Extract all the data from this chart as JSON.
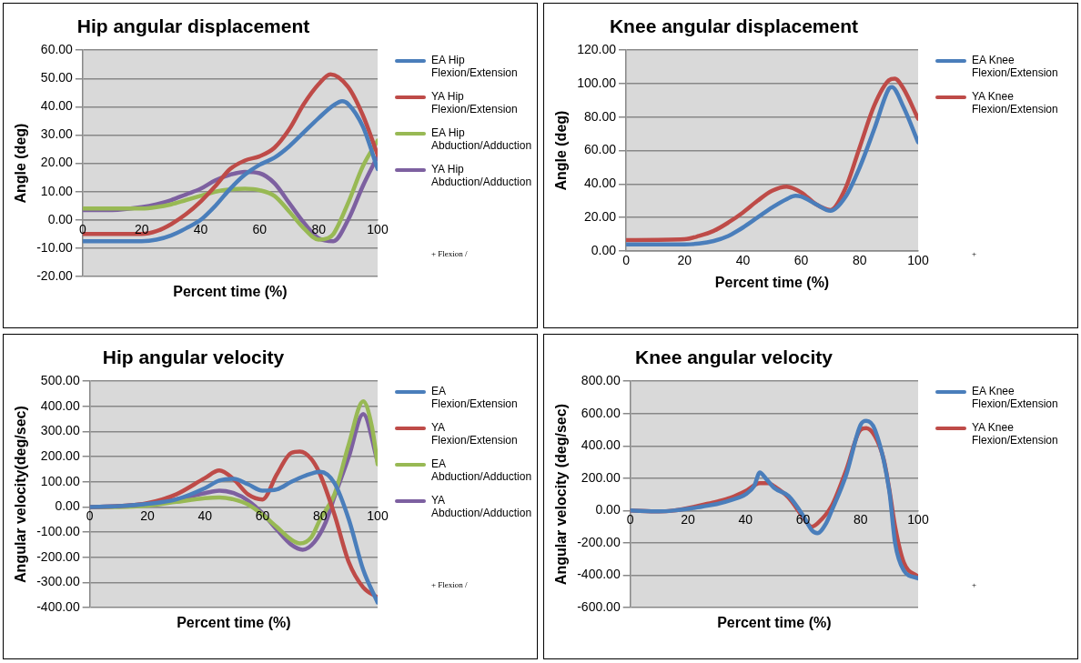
{
  "chart_data": [
    {
      "type": "line",
      "title": "Hip angular displacement",
      "xlabel": "Percent time (%)",
      "ylabel": "Angle (deg)",
      "xlim": [
        0,
        100
      ],
      "xticks": [
        0,
        20,
        40,
        60,
        80,
        100
      ],
      "ylim": [
        -20,
        60
      ],
      "yticks": [
        {
          "value": -20,
          "label": "-20.00"
        },
        {
          "value": -10,
          "label": "-10.00"
        },
        {
          "value": 0,
          "label": "0.00"
        },
        {
          "value": 10,
          "label": "10.00"
        },
        {
          "value": 20,
          "label": "20.00"
        },
        {
          "value": 30,
          "label": "30.00"
        },
        {
          "value": 40,
          "label": "40.00"
        },
        {
          "value": 50,
          "label": "50.00"
        },
        {
          "value": 60,
          "label": "60.00"
        }
      ],
      "grid": "y",
      "legend": "right",
      "annotations": [
        "+ Flexion /"
      ],
      "series": [
        {
          "name": "EA Hip Flexion/Extension",
          "color": "#4a7ebb",
          "x": [
            0,
            10,
            20,
            25,
            30,
            35,
            40,
            45,
            50,
            55,
            60,
            65,
            70,
            75,
            80,
            85,
            88,
            90,
            95,
            100
          ],
          "values": [
            -7.5,
            -7.5,
            -7.5,
            -7,
            -5.5,
            -3,
            0,
            5,
            11,
            16,
            19.5,
            22,
            26,
            31,
            36,
            40.5,
            42,
            41,
            33,
            18
          ]
        },
        {
          "name": "YA Hip Flexion/Extension",
          "color": "#be4b48",
          "x": [
            0,
            10,
            20,
            25,
            30,
            35,
            40,
            45,
            50,
            55,
            60,
            65,
            70,
            75,
            80,
            84,
            90,
            95,
            100
          ],
          "values": [
            -5,
            -5,
            -5,
            -4,
            -1.5,
            2,
            6.5,
            12,
            18,
            21,
            22.5,
            25.5,
            32,
            41,
            48,
            51.5,
            47,
            37,
            23
          ]
        },
        {
          "name": "EA Hip Abduction/Adduction",
          "color": "#98b954",
          "x": [
            0,
            10,
            20,
            25,
            30,
            35,
            40,
            45,
            50,
            55,
            60,
            65,
            70,
            75,
            80,
            83,
            85,
            90,
            95,
            100
          ],
          "values": [
            4,
            4,
            4,
            4.5,
            5.5,
            7,
            8.5,
            10,
            10.8,
            11,
            10.5,
            8.5,
            3,
            -3,
            -7,
            -6.5,
            -5,
            6,
            19,
            28
          ]
        },
        {
          "name": "YA Hip Abduction/Adduction",
          "color": "#7d60a0",
          "x": [
            0,
            10,
            20,
            25,
            30,
            35,
            40,
            45,
            50,
            55,
            60,
            65,
            70,
            75,
            80,
            85,
            90,
            95,
            100
          ],
          "values": [
            3.5,
            3.5,
            4.5,
            5.5,
            7,
            9,
            11,
            14,
            16,
            17,
            16.5,
            13,
            6,
            -1,
            -6.5,
            -7.5,
            0,
            12,
            22.5
          ]
        }
      ]
    },
    {
      "type": "line",
      "title": "Knee angular displacement",
      "xlabel": "Percent time (%)",
      "ylabel": "Angle (deg)",
      "xlim": [
        0,
        100
      ],
      "xticks": [
        0,
        20,
        40,
        60,
        80,
        100
      ],
      "ylim": [
        0,
        120
      ],
      "yticks": [
        {
          "value": 0,
          "label": "0.00"
        },
        {
          "value": 20,
          "label": "20.00"
        },
        {
          "value": 40,
          "label": "40.00"
        },
        {
          "value": 60,
          "label": "60.00"
        },
        {
          "value": 80,
          "label": "80.00"
        },
        {
          "value": 100,
          "label": "100.00"
        },
        {
          "value": 120,
          "label": "120.00"
        }
      ],
      "grid": "y",
      "legend": "right",
      "annotations": [
        "+"
      ],
      "series": [
        {
          "name": "EA Knee Flexion/Extension",
          "color": "#4a7ebb",
          "x": [
            0,
            20,
            25,
            30,
            35,
            40,
            45,
            50,
            55,
            58,
            60,
            65,
            70,
            75,
            80,
            85,
            90,
            91,
            95,
            100
          ],
          "values": [
            4,
            4,
            4.5,
            6,
            9,
            14,
            20,
            26,
            31,
            33,
            32.5,
            28,
            24,
            32,
            50,
            73,
            97,
            98,
            86,
            65
          ]
        },
        {
          "name": "YA Knee Flexion/Extension",
          "color": "#be4b48",
          "x": [
            0,
            20,
            25,
            30,
            35,
            40,
            45,
            50,
            55,
            60,
            65,
            70,
            75,
            80,
            85,
            90,
            92,
            95,
            100
          ],
          "values": [
            6.5,
            7,
            9,
            12,
            17,
            23,
            30,
            36,
            38.5,
            35,
            28,
            24.5,
            37,
            62,
            87,
            102,
            103,
            97,
            79
          ]
        }
      ]
    },
    {
      "type": "line",
      "title": "Hip angular velocity",
      "xlabel": "Percent time (%)",
      "ylabel": "Angular velocity(deg/sec)",
      "xlim": [
        0,
        100
      ],
      "xticks": [
        0,
        20,
        40,
        60,
        80,
        100
      ],
      "ylim": [
        -400,
        500
      ],
      "yticks": [
        {
          "value": -400,
          "label": "-400.00"
        },
        {
          "value": -300,
          "label": "-300.00"
        },
        {
          "value": -200,
          "label": "-200.00"
        },
        {
          "value": -100,
          "label": "-100.00"
        },
        {
          "value": 0,
          "label": "0.00"
        },
        {
          "value": 100,
          "label": "100.00"
        },
        {
          "value": 200,
          "label": "200.00"
        },
        {
          "value": 300,
          "label": "300.00"
        },
        {
          "value": 400,
          "label": "400.00"
        },
        {
          "value": 500,
          "label": "500.00"
        }
      ],
      "grid": "y",
      "legend": "right",
      "annotations": [
        "+ Flexion /"
      ],
      "series": [
        {
          "name": "EA Flexion/Extension",
          "color": "#4a7ebb",
          "x": [
            0,
            10,
            20,
            30,
            40,
            45,
            50,
            55,
            60,
            65,
            70,
            75,
            80,
            85,
            90,
            95,
            100
          ],
          "values": [
            0,
            3,
            12,
            30,
            75,
            105,
            112,
            90,
            65,
            70,
            100,
            125,
            140,
            95,
            -50,
            -250,
            -380
          ]
        },
        {
          "name": "YA Flexion/Extension",
          "color": "#be4b48",
          "x": [
            0,
            10,
            20,
            30,
            40,
            45,
            50,
            55,
            60,
            65,
            70,
            73,
            77,
            80,
            85,
            90,
            95,
            100
          ],
          "values": [
            0,
            3,
            15,
            50,
            115,
            145,
            110,
            50,
            30,
            130,
            215,
            220,
            190,
            130,
            -30,
            -220,
            -320,
            -360
          ]
        },
        {
          "name": "EA Abduction/Adduction",
          "color": "#98b954",
          "x": [
            0,
            10,
            20,
            30,
            40,
            45,
            50,
            55,
            60,
            65,
            70,
            73,
            77,
            80,
            85,
            90,
            95,
            98,
            100
          ],
          "values": [
            0,
            0,
            5,
            20,
            35,
            38,
            30,
            10,
            -30,
            -80,
            -130,
            -145,
            -120,
            -50,
            50,
            250,
            420,
            320,
            170
          ]
        },
        {
          "name": "YA Abduction/Adduction",
          "color": "#7d60a0",
          "x": [
            0,
            10,
            20,
            30,
            40,
            45,
            50,
            55,
            60,
            65,
            70,
            74,
            78,
            82,
            85,
            90,
            95,
            100
          ],
          "values": [
            0,
            3,
            12,
            30,
            55,
            65,
            55,
            25,
            -25,
            -90,
            -150,
            -170,
            -140,
            -60,
            40,
            200,
            370,
            180
          ]
        }
      ]
    },
    {
      "type": "line",
      "title": "Knee angular velocity",
      "xlabel": "Percent time (%)",
      "ylabel": "Angular velocity (deg/sec)",
      "xlim": [
        0,
        100
      ],
      "xticks": [
        0,
        20,
        40,
        60,
        80,
        100
      ],
      "ylim": [
        -600,
        800
      ],
      "yticks": [
        {
          "value": -600,
          "label": "-600.00"
        },
        {
          "value": -400,
          "label": "-400.00"
        },
        {
          "value": -200,
          "label": "-200.00"
        },
        {
          "value": 0,
          "label": "0.00"
        },
        {
          "value": 200,
          "label": "200.00"
        },
        {
          "value": 400,
          "label": "400.00"
        },
        {
          "value": 600,
          "label": "600.00"
        },
        {
          "value": 800,
          "label": "800.00"
        }
      ],
      "grid": "y",
      "legend": "right",
      "annotations": [
        "+"
      ],
      "series": [
        {
          "name": "EA Knee Flexion/Extension",
          "color": "#4a7ebb",
          "x": [
            0,
            10,
            15,
            20,
            25,
            30,
            35,
            40,
            43,
            45,
            47,
            50,
            55,
            60,
            63,
            65,
            68,
            70,
            75,
            80,
            82,
            85,
            90,
            92,
            95,
            100
          ],
          "values": [
            0,
            -5,
            0,
            10,
            25,
            40,
            65,
            100,
            150,
            235,
            200,
            140,
            90,
            -30,
            -120,
            -140,
            -80,
            0,
            220,
            530,
            555,
            500,
            120,
            -200,
            -370,
            -420
          ]
        },
        {
          "name": "YA Knee Flexion/Extension",
          "color": "#be4b48",
          "x": [
            0,
            10,
            15,
            20,
            25,
            30,
            35,
            40,
            45,
            48,
            50,
            55,
            60,
            63,
            65,
            70,
            75,
            80,
            82,
            85,
            88,
            90,
            92,
            95,
            100
          ],
          "values": [
            0,
            -5,
            0,
            15,
            35,
            55,
            80,
            120,
            170,
            170,
            150,
            80,
            -40,
            -100,
            -80,
            30,
            250,
            500,
            510,
            460,
            320,
            130,
            -100,
            -320,
            -410
          ]
        }
      ]
    }
  ]
}
